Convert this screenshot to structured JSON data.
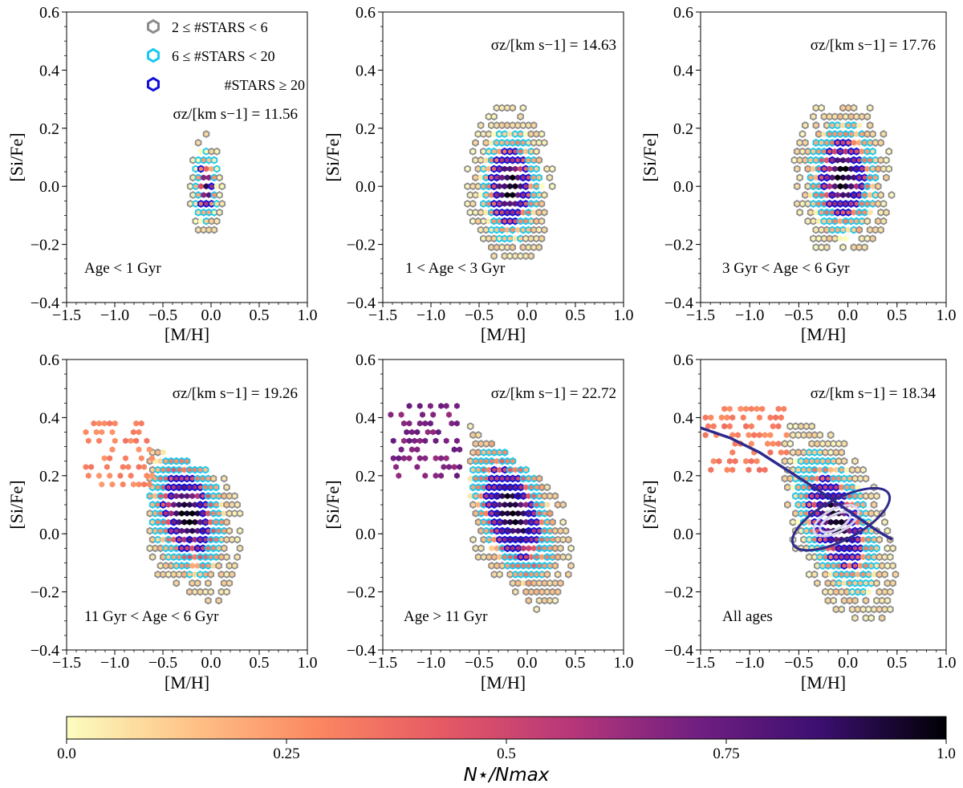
{
  "colorbar": {
    "label": "N⋆/Nmax",
    "ticks": [
      {
        "value": 0.0,
        "label": "0.0"
      },
      {
        "value": 0.25,
        "label": "0.25"
      },
      {
        "value": 0.5,
        "label": "0.5"
      },
      {
        "value": 0.75,
        "label": "0.75"
      },
      {
        "value": 1.0,
        "label": "1.0"
      }
    ],
    "colors": [
      "#fcfdbf",
      "#fec287",
      "#fb8761",
      "#e55964",
      "#b73779",
      "#721f81",
      "#3b0f70",
      "#000004"
    ]
  },
  "legend": {
    "items": [
      {
        "label": "2 ≤ #STARS < 6",
        "color": "#8c8c8c"
      },
      {
        "label": "6 ≤ #STARS < 20",
        "color": "#18c8f0"
      },
      {
        "label": "#STARS ≥ 20",
        "color": "#1010d8"
      }
    ]
  },
  "chart_data": [
    {
      "type": "hexbin",
      "panel": "Age < 1 Gyr",
      "xlabel": "[M/H]",
      "ylabel": "[Si/Fe]",
      "xlim": [
        -1.5,
        1.0
      ],
      "ylim": [
        -0.4,
        0.6
      ],
      "xticks": [
        "−1.5",
        "−1.0",
        "−0.5",
        "0.0",
        "0.5",
        "1.0"
      ],
      "yticks": [
        "−0.4",
        "−0.2",
        "0.0",
        "0.2",
        "0.4",
        "0.6"
      ],
      "sigma_label": "σz/[km s−1] = 11.56",
      "sigma_z": 11.56,
      "center": [
        -0.05,
        0.0
      ],
      "spread": [
        0.09,
        0.09
      ],
      "extent": [
        -0.45,
        0.3,
        -0.2,
        0.27
      ],
      "tilt": 0.0,
      "density_exp": 1.6
    },
    {
      "type": "hexbin",
      "panel": "1 < Age < 3 Gyr",
      "xlabel": "[M/H]",
      "ylabel": "[Si/Fe]",
      "xlim": [
        -1.5,
        1.0
      ],
      "ylim": [
        -0.4,
        0.6
      ],
      "xticks": [
        "−1.5",
        "−1.0",
        "−0.5",
        "0.0",
        "0.5",
        "1.0"
      ],
      "yticks": [
        "−0.4",
        "−0.2",
        "0.0",
        "0.2",
        "0.4",
        "0.6"
      ],
      "sigma_label": "σz/[km s−1] = 14.63",
      "sigma_z": 14.63,
      "center": [
        -0.18,
        0.0
      ],
      "spread": [
        0.22,
        0.14
      ],
      "extent": [
        -0.62,
        0.35,
        -0.26,
        0.28
      ],
      "tilt": 0.0,
      "density_exp": 1.2
    },
    {
      "type": "hexbin",
      "panel": "3 Gyr < Age < 6 Gyr",
      "xlabel": "[M/H]",
      "ylabel": "[Si/Fe]",
      "xlim": [
        -1.5,
        1.0
      ],
      "ylim": [
        -0.4,
        0.6
      ],
      "xticks": [
        "−1.5",
        "−1.0",
        "−0.5",
        "0.0",
        "0.5",
        "1.0"
      ],
      "yticks": [
        "−0.4",
        "−0.2",
        "0.0",
        "0.2",
        "0.4",
        "0.6"
      ],
      "sigma_label": "σz/[km s−1] = 17.76",
      "sigma_z": 17.76,
      "center": [
        -0.05,
        0.03
      ],
      "spread": [
        0.25,
        0.14
      ],
      "extent": [
        -0.6,
        0.55,
        -0.24,
        0.3
      ],
      "tilt": 0.0,
      "density_exp": 1.1
    },
    {
      "type": "hexbin",
      "panel": "11 Gyr < Age < 6 Gyr",
      "xlabel": "[M/H]",
      "ylabel": "[Si/Fe]",
      "xlim": [
        -1.5,
        1.0
      ],
      "ylim": [
        -0.4,
        0.6
      ],
      "xticks": [
        "−1.5",
        "−1.0",
        "−0.5",
        "0.0",
        "0.5",
        "1.0"
      ],
      "yticks": [
        "−0.4",
        "−0.2",
        "0.0",
        "0.2",
        "0.4",
        "0.6"
      ],
      "sigma_label": "σz/[km s−1] = 19.26",
      "sigma_z": 19.26,
      "center": [
        -0.25,
        0.07
      ],
      "spread": [
        0.28,
        0.15
      ],
      "extent": [
        -0.65,
        0.6,
        -0.2,
        0.25
      ],
      "tilt": -0.15,
      "density_exp": 1.0,
      "extra_region": [
        -1.3,
        -0.6,
        0.17,
        0.4,
        0.1
      ]
    },
    {
      "type": "hexbin",
      "panel": "Age > 11 Gyr",
      "xlabel": "[M/H]",
      "ylabel": "[Si/Fe]",
      "xlim": [
        -1.5,
        1.0
      ],
      "ylim": [
        -0.4,
        0.6
      ],
      "xticks": [
        "−1.5",
        "−1.0",
        "−0.5",
        "0.0",
        "0.5",
        "1.0"
      ],
      "yticks": [
        "−0.4",
        "−0.2",
        "0.0",
        "0.2",
        "0.4",
        "0.6"
      ],
      "sigma_label": "σz/[km s−1] = 22.72",
      "sigma_z": 22.72,
      "center": [
        -0.15,
        0.07
      ],
      "spread": [
        0.3,
        0.15
      ],
      "extent": [
        -0.6,
        0.5,
        -0.2,
        0.26
      ],
      "tilt": -0.25,
      "density_exp": 0.9,
      "extra_region": [
        -1.5,
        -0.7,
        0.2,
        0.45,
        0.5
      ]
    },
    {
      "type": "hexbin",
      "panel": "All ages",
      "xlabel": "[M/H]",
      "ylabel": "[Si/Fe]",
      "xlim": [
        -1.5,
        1.0
      ],
      "ylim": [
        -0.4,
        0.6
      ],
      "xticks": [
        "−1.5",
        "−1.0",
        "−0.5",
        "0.0",
        "0.5",
        "1.0"
      ],
      "yticks": [
        "−0.4",
        "−0.2",
        "0.0",
        "0.2",
        "0.4",
        "0.6"
      ],
      "sigma_label": "σz/[km s−1] = 18.34",
      "sigma_z": 18.34,
      "center": [
        -0.12,
        0.04
      ],
      "spread": [
        0.3,
        0.15
      ],
      "extent": [
        -0.65,
        0.55,
        -0.3,
        0.35
      ],
      "tilt": -0.3,
      "density_exp": 1.2,
      "extra_region": [
        -1.45,
        -0.6,
        0.22,
        0.45,
        0.12
      ],
      "contours": [
        {
          "center": [
            -0.07,
            0.05
          ],
          "half_axes": [
            0.55,
            0.07
          ],
          "angle_deg": -28,
          "color": "#2e2a8c"
        },
        {
          "center": [
            -0.12,
            0.045
          ],
          "half_axes": [
            0.25,
            0.04
          ],
          "angle_deg": -28,
          "color": "#d8d4ee"
        },
        {
          "center": [
            -0.13,
            0.04
          ],
          "half_axes": [
            0.17,
            0.025
          ],
          "angle_deg": -28,
          "color": "#d8d4ee"
        }
      ],
      "fit_line": {
        "x": [
          -1.5,
          -1.2,
          -0.9,
          -0.6,
          -0.3,
          0.0,
          0.3,
          0.45
        ],
        "y": [
          0.365,
          0.33,
          0.28,
          0.215,
          0.15,
          0.08,
          0.01,
          -0.02
        ],
        "color": "#2e2a8c"
      }
    }
  ]
}
